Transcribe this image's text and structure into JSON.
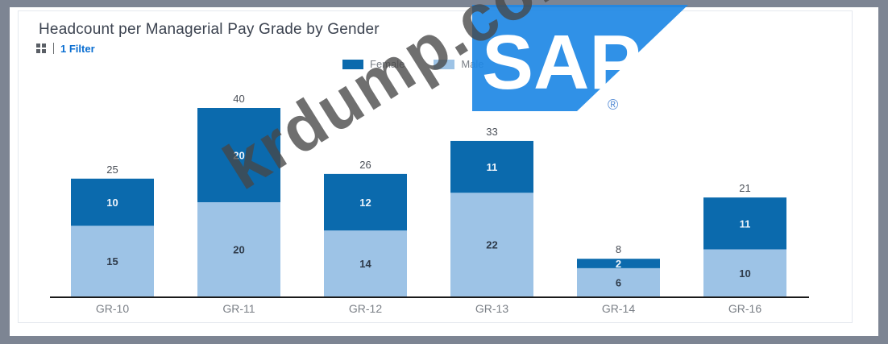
{
  "chart_data": {
    "type": "bar",
    "stacked": true,
    "title": "Headcount per Managerial Pay Grade by Gender",
    "filter_label": "1 Filter",
    "categories": [
      "GR-10",
      "GR-11",
      "GR-12",
      "GR-13",
      "GR-14",
      "GR-16"
    ],
    "series": [
      {
        "name": "Male",
        "values": [
          15,
          20,
          14,
          22,
          6,
          10
        ],
        "color": "#9dc3e6"
      },
      {
        "name": "Female",
        "values": [
          10,
          20,
          12,
          11,
          2,
          11
        ],
        "color": "#0b6aad"
      }
    ],
    "totals": [
      25,
      40,
      26,
      33,
      8,
      21
    ],
    "ylim": [
      0,
      40
    ],
    "grid": false,
    "legend_position": "top"
  },
  "legend": {
    "female": "Female",
    "male": "Male"
  },
  "logo": {
    "brand": "SAP",
    "mark": "®"
  },
  "watermark": {
    "text": "krdump.com"
  }
}
